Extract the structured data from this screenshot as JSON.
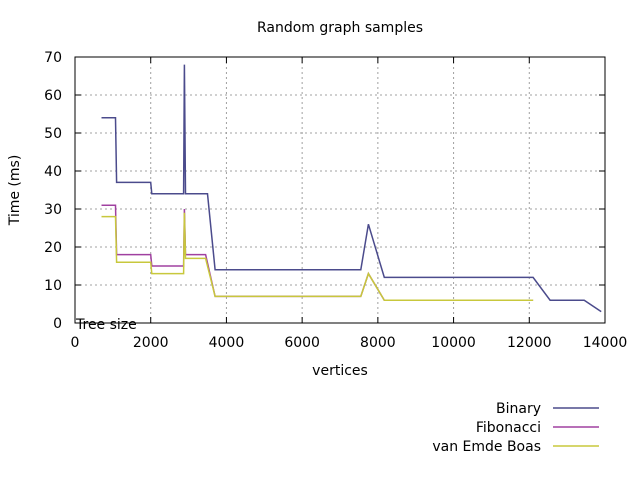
{
  "chart_data": {
    "type": "line",
    "title": "Random graph samples",
    "xlabel": "vertices",
    "ylabel": "Time (ms)",
    "annotation": "Tree size",
    "xlim": [
      0,
      14000
    ],
    "ylim": [
      0,
      70
    ],
    "xticks": [
      0,
      2000,
      4000,
      6000,
      8000,
      10000,
      12000,
      14000
    ],
    "yticks": [
      0,
      10,
      20,
      30,
      40,
      50,
      60,
      70
    ],
    "grid": true,
    "legend_position": "bottom-right",
    "series": [
      {
        "name": "Binary",
        "color": "#4b4b8c",
        "points": [
          [
            700,
            54
          ],
          [
            1070,
            54
          ],
          [
            1100,
            37
          ],
          [
            2000,
            37
          ],
          [
            2030,
            34
          ],
          [
            2870,
            34
          ],
          [
            2890,
            68
          ],
          [
            2920,
            34
          ],
          [
            3500,
            34
          ],
          [
            3700,
            14
          ],
          [
            7550,
            14
          ],
          [
            7750,
            26
          ],
          [
            8170,
            12
          ],
          [
            12100,
            12
          ],
          [
            12550,
            6
          ],
          [
            13450,
            6
          ],
          [
            13900,
            3
          ]
        ]
      },
      {
        "name": "Fibonacci",
        "color": "#a040a0",
        "points": [
          [
            700,
            31
          ],
          [
            1070,
            31
          ],
          [
            1100,
            18
          ],
          [
            2000,
            18
          ],
          [
            2030,
            15
          ],
          [
            2870,
            15
          ],
          [
            2890,
            30
          ],
          [
            2920,
            18
          ],
          [
            3450,
            18
          ],
          [
            3700,
            7
          ],
          [
            7550,
            7
          ],
          [
            7750,
            13
          ],
          [
            8170,
            6
          ],
          [
            12100,
            6
          ]
        ]
      },
      {
        "name": "van Emde Boas",
        "color": "#c8c83c",
        "points": [
          [
            700,
            28
          ],
          [
            1070,
            28
          ],
          [
            1100,
            16
          ],
          [
            2000,
            16
          ],
          [
            2030,
            13
          ],
          [
            2870,
            13
          ],
          [
            2890,
            29
          ],
          [
            2920,
            17
          ],
          [
            3450,
            17
          ],
          [
            3700,
            7
          ],
          [
            7550,
            7
          ],
          [
            7750,
            13
          ],
          [
            8170,
            6
          ],
          [
            12100,
            6
          ]
        ]
      }
    ]
  }
}
